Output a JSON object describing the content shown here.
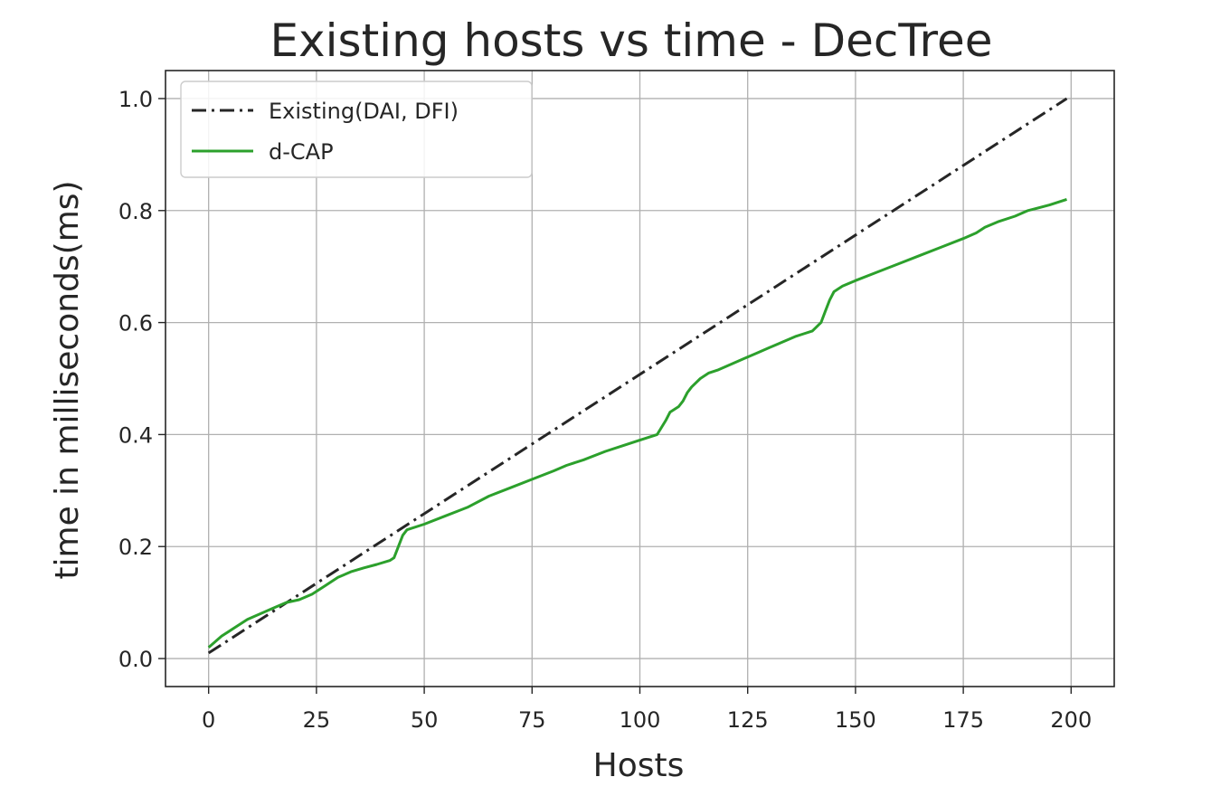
{
  "chart_data": {
    "type": "line",
    "title": "Existing hosts vs time - DecTree",
    "xlabel": "Hosts",
    "ylabel": "time in milliseconds(ms)",
    "xlim": [
      -10,
      210
    ],
    "ylim": [
      -0.05,
      1.05
    ],
    "xticks": [
      0,
      25,
      50,
      75,
      100,
      125,
      150,
      175,
      200
    ],
    "xtick_labels": [
      "0",
      "25",
      "50",
      "75",
      "100",
      "125",
      "150",
      "175",
      "200"
    ],
    "yticks": [
      0.0,
      0.2,
      0.4,
      0.6,
      0.8,
      1.0
    ],
    "ytick_labels": [
      "0.0",
      "0.2",
      "0.4",
      "0.6",
      "0.8",
      "1.0"
    ],
    "grid": true,
    "legend_position": "top-left",
    "series": [
      {
        "name": "Existing(DAI, DFI)",
        "color": "#262626",
        "style": "dash-dot",
        "x": [
          0,
          199
        ],
        "y": [
          0.01,
          1.0
        ]
      },
      {
        "name": "d-CAP",
        "color": "#2ca02c",
        "style": "solid",
        "x": [
          0,
          3,
          6,
          9,
          12,
          15,
          18,
          21,
          24,
          27,
          30,
          33,
          36,
          39,
          42,
          43,
          44,
          45,
          46,
          50,
          55,
          60,
          65,
          70,
          75,
          80,
          83,
          87,
          92,
          96,
          100,
          104,
          106,
          107,
          109,
          110,
          111,
          112,
          114,
          116,
          118,
          121,
          124,
          127,
          130,
          133,
          136,
          138,
          140,
          142,
          143,
          144,
          145,
          146,
          147,
          150,
          155,
          160,
          165,
          170,
          175,
          178,
          180,
          183,
          187,
          190,
          195,
          199
        ],
        "y": [
          0.02,
          0.04,
          0.055,
          0.07,
          0.08,
          0.09,
          0.1,
          0.105,
          0.115,
          0.13,
          0.145,
          0.155,
          0.162,
          0.168,
          0.175,
          0.18,
          0.2,
          0.22,
          0.23,
          0.24,
          0.255,
          0.27,
          0.29,
          0.305,
          0.32,
          0.335,
          0.345,
          0.355,
          0.37,
          0.38,
          0.39,
          0.4,
          0.425,
          0.44,
          0.45,
          0.46,
          0.475,
          0.485,
          0.5,
          0.51,
          0.515,
          0.525,
          0.535,
          0.545,
          0.555,
          0.565,
          0.575,
          0.58,
          0.585,
          0.6,
          0.62,
          0.64,
          0.655,
          0.66,
          0.665,
          0.675,
          0.69,
          0.705,
          0.72,
          0.735,
          0.75,
          0.76,
          0.77,
          0.78,
          0.79,
          0.8,
          0.81,
          0.82
        ]
      }
    ]
  }
}
